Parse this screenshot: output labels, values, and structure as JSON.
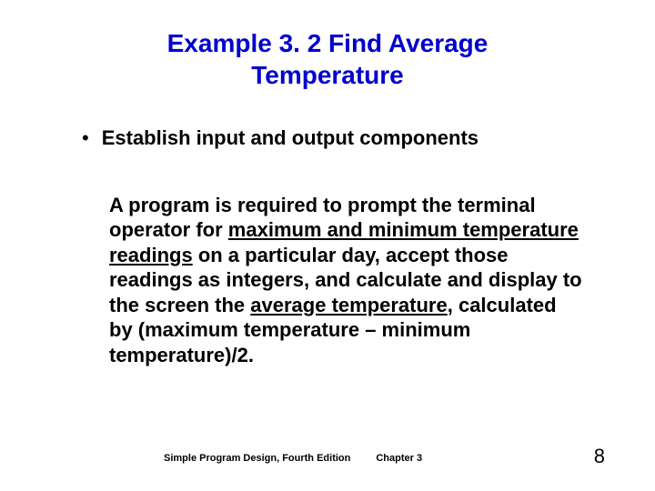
{
  "title_line1": "Example 3. 2   Find Average",
  "title_line2": "Temperature",
  "title_color": "#0000cc",
  "title_fontsize": 28,
  "bullet": {
    "dot": "•",
    "text": "Establish input and output components",
    "fontsize": 22,
    "color": "#000000"
  },
  "body": {
    "fontsize": 22,
    "color": "#000000",
    "pre1": "A program is required to prompt the terminal operator for ",
    "u1": "maximum and minimum temperature readings",
    "mid1": " on a particular day, accept those readings as integers, and calculate and display to the screen the ",
    "u2": "average temperature",
    "post": ", calculated by (maximum temperature – minimum temperature)/2."
  },
  "footer": {
    "left": "Simple Program Design, Fourth Edition",
    "mid": "Chapter 3",
    "fontsize": 11,
    "page": "8",
    "page_fontsize": 22,
    "color": "#000000"
  }
}
